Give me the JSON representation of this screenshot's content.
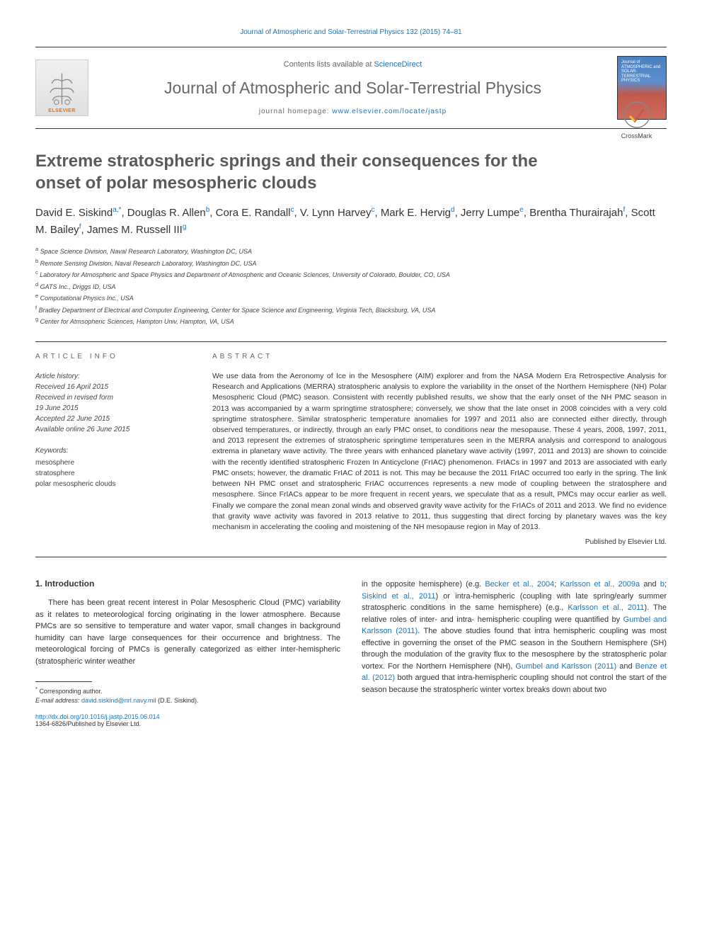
{
  "top_citation": "Journal of Atmospheric and Solar-Terrestrial Physics 132 (2015) 74–81",
  "header": {
    "contents_prefix": "Contents lists available at ",
    "contents_link": "ScienceDirect",
    "journal_name": "Journal of Atmospheric and Solar-Terrestrial Physics",
    "homepage_prefix": "journal homepage: ",
    "homepage_link": "www.elsevier.com/locate/jastp",
    "publisher": "ELSEVIER",
    "cover_text": "Journal of ATMOSPHERIC and SOLAR-TERRESTRIAL PHYSICS"
  },
  "crossmark_label": "CrossMark",
  "title": "Extreme stratospheric springs and their consequences for the onset of polar mesospheric clouds",
  "authors": [
    {
      "name": "David E. Siskind",
      "sup": "a,*"
    },
    {
      "name": "Douglas R. Allen",
      "sup": "b"
    },
    {
      "name": "Cora E. Randall",
      "sup": "c"
    },
    {
      "name": "V. Lynn Harvey",
      "sup": "c"
    },
    {
      "name": "Mark E. Hervig",
      "sup": "d"
    },
    {
      "name": "Jerry Lumpe",
      "sup": "e"
    },
    {
      "name": "Brentha Thurairajah",
      "sup": "f"
    },
    {
      "name": "Scott M. Bailey",
      "sup": "f"
    },
    {
      "name": "James M. Russell III",
      "sup": "g"
    }
  ],
  "affiliations": [
    {
      "sup": "a",
      "text": "Space Science Division, Naval Research Laboratory, Washington DC, USA"
    },
    {
      "sup": "b",
      "text": "Remote Sensing Division, Naval Research Laboratory, Washington DC, USA"
    },
    {
      "sup": "c",
      "text": "Laboratory for Atmospheric and Space Physics and Department of Atmospheric and Oceanic Sciences, University of Colorado, Boulder, CO, USA"
    },
    {
      "sup": "d",
      "text": "GATS Inc., Driggs ID, USA"
    },
    {
      "sup": "e",
      "text": "Computational Physics Inc., USA"
    },
    {
      "sup": "f",
      "text": "Bradley Department of Electrical and Computer Engineering, Center for Space Science and Engineering, Virginia Tech, Blacksburg, VA, USA"
    },
    {
      "sup": "g",
      "text": "Center for Atmsopheric Sciences, Hampton Univ, Hampton, VA, USA"
    }
  ],
  "article_info": {
    "heading": "article info",
    "history_label": "Article history:",
    "history": [
      "Received 16 April 2015",
      "Received in revised form",
      "19 June 2015",
      "Accepted 22 June 2015",
      "Available online 26 June 2015"
    ],
    "keywords_label": "Keywords:",
    "keywords": [
      "mesosphere",
      "stratosphere",
      "polar mesospheric clouds"
    ]
  },
  "abstract": {
    "heading": "abstract",
    "text": "We use data from the Aeronomy of Ice in the Mesosphere (AIM) explorer and from the NASA Modern Era Retrospective Analysis for Research and Applications (MERRA) stratospheric analysis to explore the variability in the onset of the Northern Hemisphere (NH) Polar Mesospheric Cloud (PMC) season. Consistent with recently published results, we show that the early onset of the NH PMC season in 2013 was accompanied by a warm springtime stratosphere; conversely, we show that the late onset in 2008 coincides with a very cold springtime stratosphere. Similar stratospheric temperature anomalies for 1997 and 2011 also are connected either directly, through observed temperatures, or indirectly, through an early PMC onset, to conditions near the mesopause. These 4 years, 2008, 1997, 2011, and 2013 represent the extremes of stratospheric springtime temperatures seen in the MERRA analysis and correspond to analogous extrema in planetary wave activity. The three years with enhanced planetary wave activity (1997, 2011 and 2013) are shown to coincide with the recently identified stratospheric Frozen In Anticyclone (FrIAC) phenomenon. FrIACs in 1997 and 2013 are associated with early PMC onsets; however, the dramatic FrIAC of 2011 is not. This may be because the 2011 FrIAC occurred too early in the spring. The link between NH PMC onset and stratospheric FrIAC occurrences represents a new mode of coupling between the stratosphere and mesosphere. Since FrIACs appear to be more frequent in recent years, we speculate that as a result, PMCs may occur earlier as well. Finally we compare the zonal mean zonal winds and observed gravity wave activity for the FrIACs of 2011 and 2013. We find no evidence that gravity wave activity was favored in 2013 relative to 2011, thus suggesting that direct forcing by planetary waves was the key mechanism in accelerating the cooling and moistening of the NH mesopause region in May of 2013.",
    "publisher_note": "Published by Elsevier Ltd."
  },
  "body": {
    "section_heading": "1.   Introduction",
    "col1_para": "There has been great recent interest in Polar Mesospheric Cloud (PMC) variability as it relates to meteorological forcing originating in the lower atmosphere. Because PMCs are so sensitive to temperature and water vapor, small changes in background humidity can have large consequences for their occurrence and brightness. The meteorological forcing of PMCs is generally categorized as either inter-hemispheric (stratospheric winter weather",
    "col2_pre": "in the opposite hemisphere) (e.g. ",
    "col2_link1": "Becker et al., 2004",
    "col2_mid1": "; ",
    "col2_link2": "Karlsson et al., 2009a",
    "col2_mid2": " and ",
    "col2_link3": "b",
    "col2_mid3": "; ",
    "col2_link4": "Siskind et al., 2011",
    "col2_post1": ") or intra-hemispheric (coupling with late spring/early summer stratospheric conditions in the same hemisphere) (e.g., ",
    "col2_link5": "Karlsson et al., 2011",
    "col2_post2": "). The relative roles of inter- and intra- hemispheric coupling were quantified by ",
    "col2_link6": "Gumbel and Karlsson (2011)",
    "col2_post3": ". The above studies found that intra hemispheric coupling was most effective in governing the onset of the PMC season in the Southern Hemisphere (SH) through the modulation of the gravity flux to the mesosphere by the stratospheric polar vortex. For the Northern Hemisphere (NH), ",
    "col2_link7": "Gumbel and Karlsson (2011)",
    "col2_mid4": " and ",
    "col2_link8": "Benze et al. (2012)",
    "col2_post4": " both argued that intra-hemispheric coupling should not control the start of the season because the stratospheric winter vortex breaks down about two"
  },
  "footnote": {
    "corresp_marker": "*",
    "corresp_text": "Corresponding author.",
    "email_label": "E-mail address: ",
    "email": "david.siskind@nrl.navy.mil",
    "email_name": " (D.E. Siskind)."
  },
  "doi": {
    "link": "http://dx.doi.org/10.1016/j.jastp.2015.06.014",
    "issn": "1364-6826/Published by Elsevier Ltd."
  },
  "colors": {
    "link": "#1a73bb",
    "text": "#333333",
    "heading_gray": "#5a5a5a",
    "elsevier_orange": "#ff6600"
  }
}
